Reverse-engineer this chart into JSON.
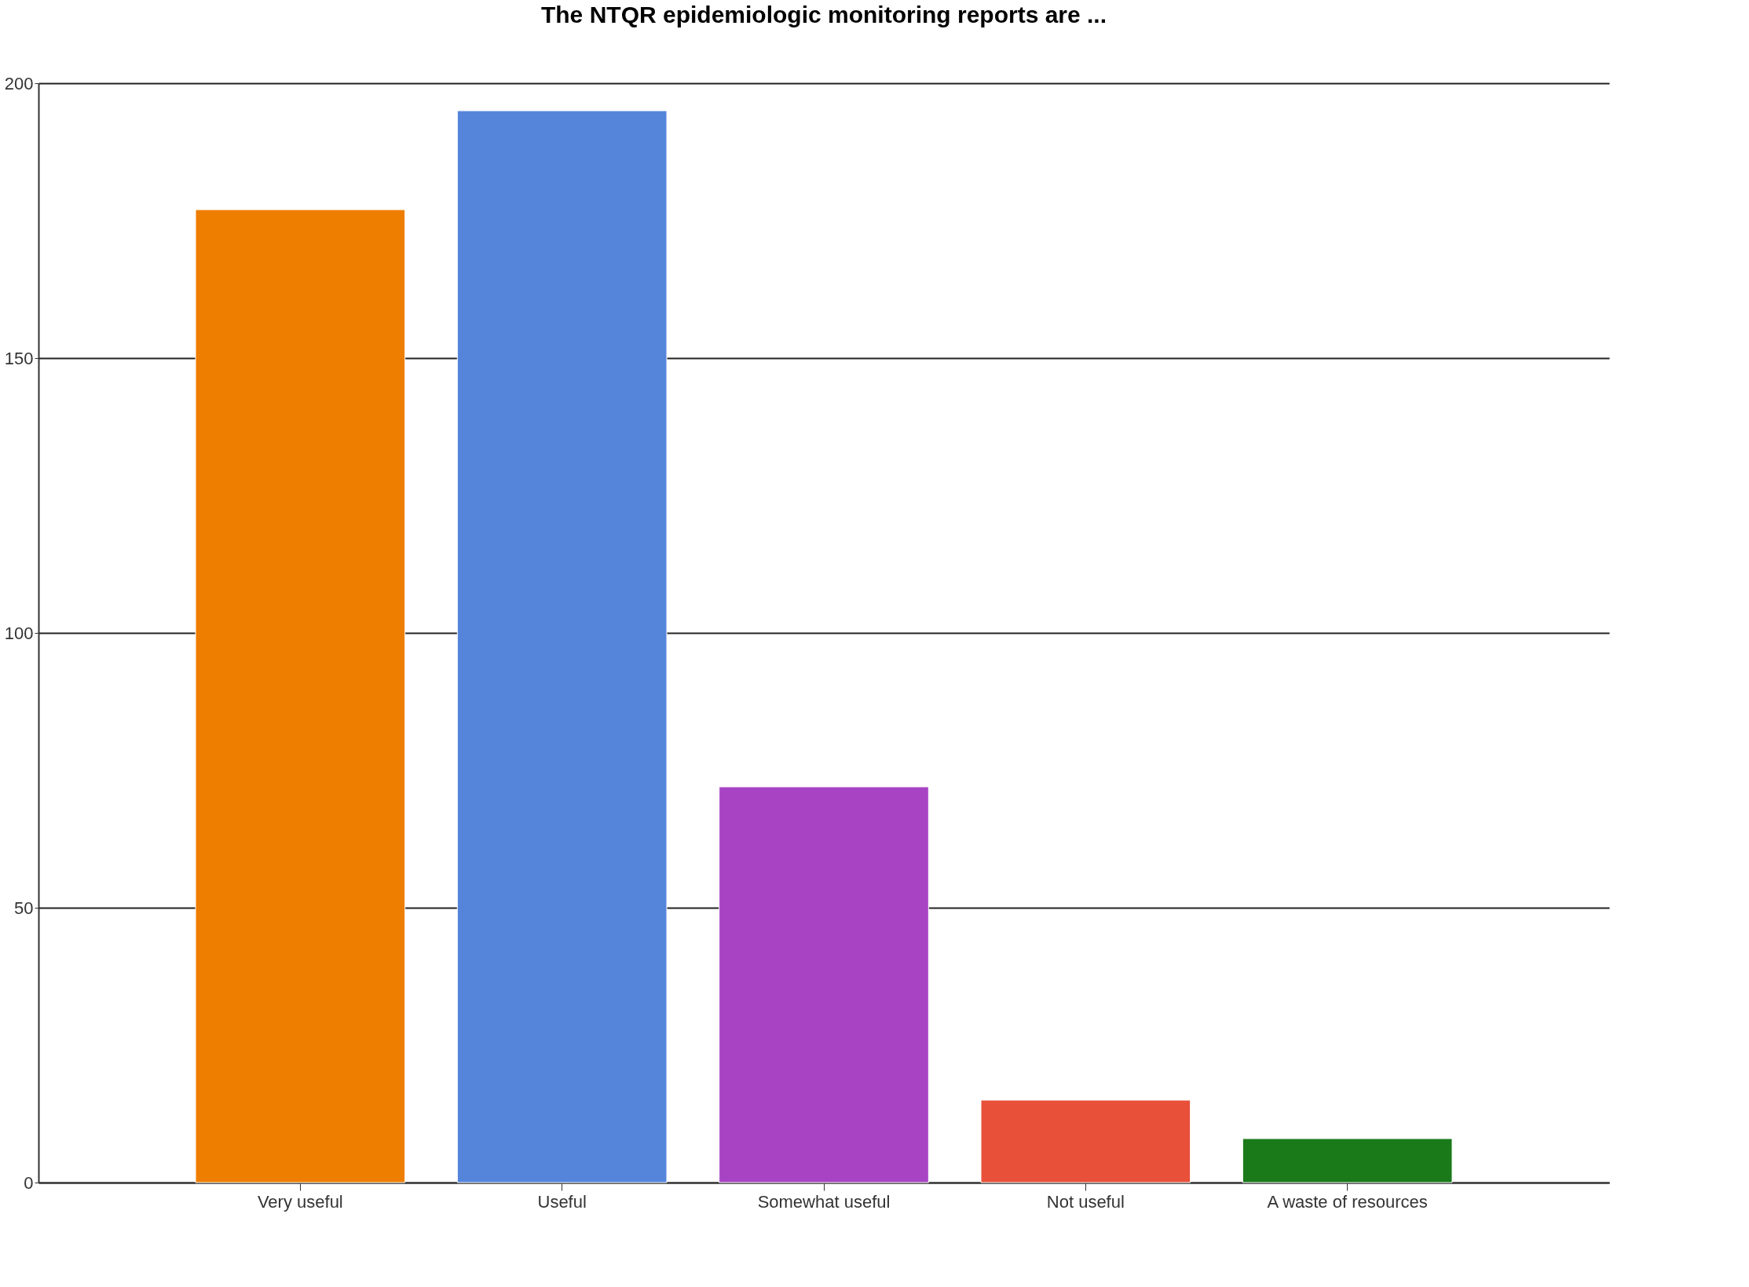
{
  "chart_data": {
    "type": "bar",
    "title": "The NTQR epidemiologic monitoring reports are ...",
    "categories": [
      "Very useful",
      "Useful",
      "Somewhat useful",
      "Not useful",
      "A waste of resources"
    ],
    "values": [
      177,
      195,
      72,
      15,
      8
    ],
    "colors": [
      "#ee7e00",
      "#5585db",
      "#a844c4",
      "#e8503a",
      "#1a7a1a"
    ],
    "ylim": [
      0,
      200
    ],
    "yticks": [
      0,
      50,
      100,
      150,
      200
    ],
    "grid": "y"
  }
}
